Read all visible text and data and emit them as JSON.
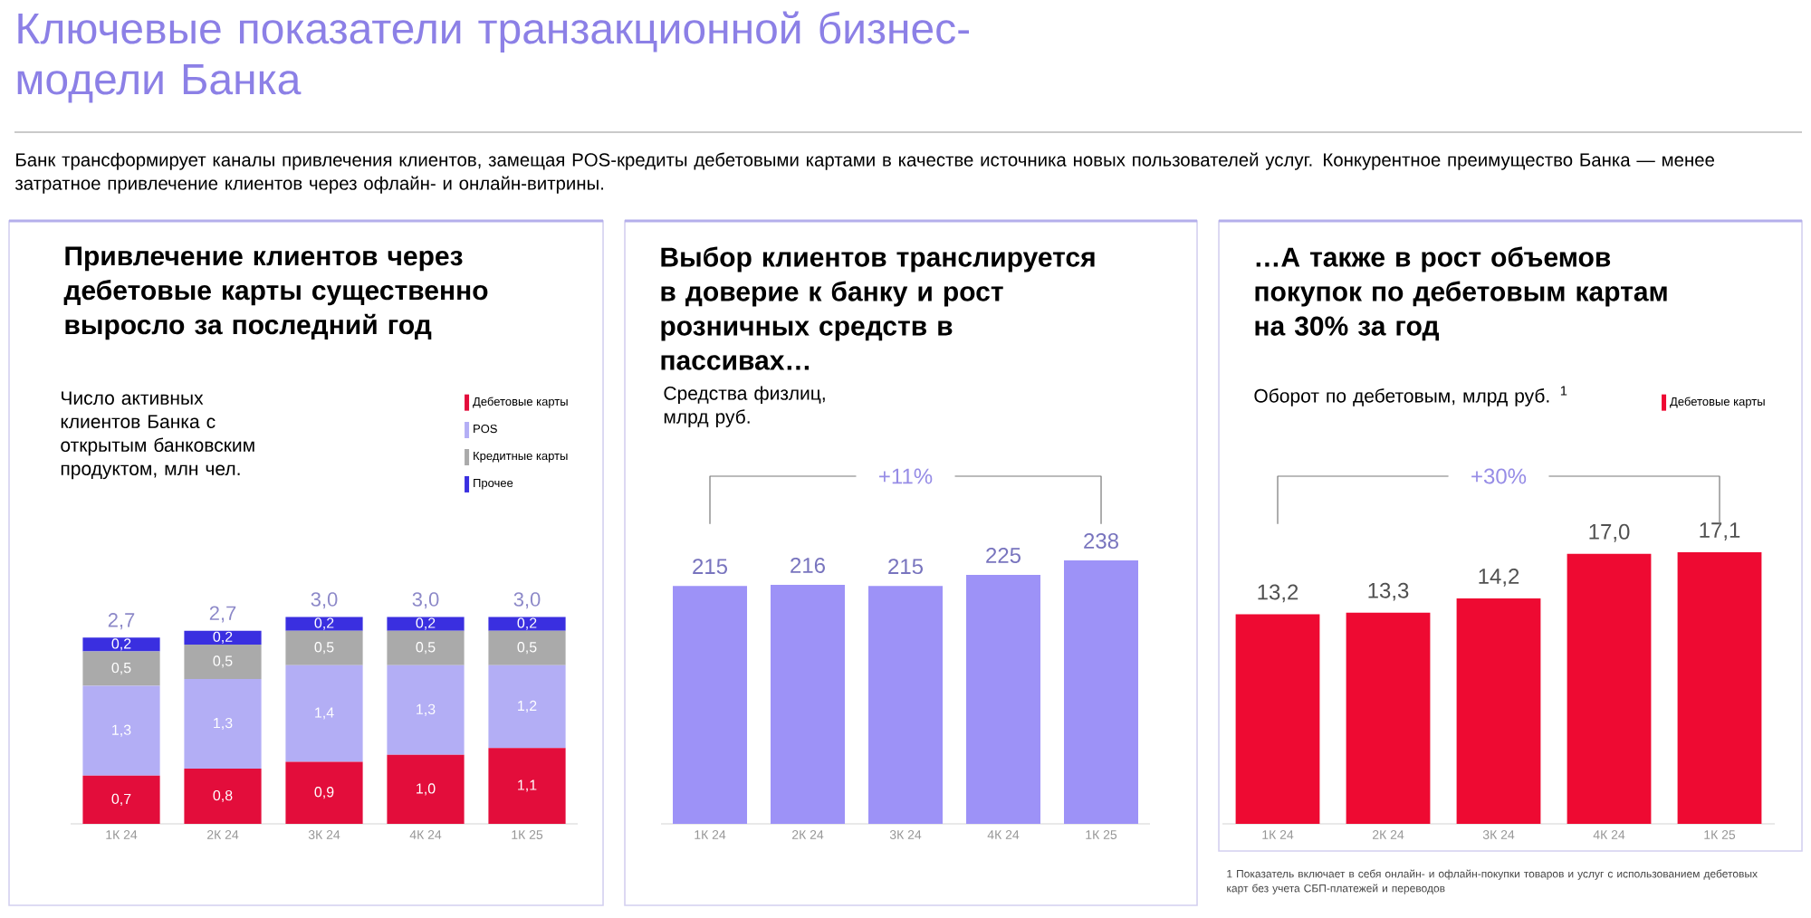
{
  "chart_data": [
    {
      "type": "bar",
      "title": "Привлечение клиентов через дебетовые карты существенно выросло за последний год",
      "subtitle": "Число активных клиентов Банка с открытым банковским продуктом, млн чел.",
      "categories": [
        "1К 24",
        "2К 24",
        "3К 24",
        "4К 24",
        "1К 25"
      ],
      "stacked": true,
      "legend": "top right",
      "tick_labels": "x",
      "series": [
        {
          "name": "Дебетовые карты",
          "color": "#e30d3b",
          "values": [
            0.7,
            0.8,
            0.9,
            1.0,
            1.1
          ],
          "value_labels": [
            "0,7",
            "0,8",
            "0,9",
            "1,0",
            "1,1"
          ]
        },
        {
          "name": "POS",
          "color": "#b3aef5",
          "values": [
            1.3,
            1.3,
            1.4,
            1.3,
            1.2
          ],
          "value_labels": [
            "1,3",
            "1,3",
            "1,4",
            "1,3",
            "1,2"
          ]
        },
        {
          "name": "Кредитные карты",
          "color": "#aaaaaa",
          "values": [
            0.5,
            0.5,
            0.5,
            0.5,
            0.5
          ],
          "value_labels": [
            "0,5",
            "0,5",
            "0,5",
            "0,5",
            "0,5"
          ]
        },
        {
          "name": "Прочее",
          "color": "#3a2fe0",
          "values": [
            0.2,
            0.2,
            0.2,
            0.2,
            0.2
          ],
          "value_labels": [
            "0,2",
            "0,2",
            "0,2",
            "0,2",
            "0,2"
          ]
        }
      ],
      "totals": [
        "2,7",
        "2,7",
        "3,0",
        "3,0",
        "3,0"
      ],
      "annotations": [
        "Ключевые показатели транзакционной бизнес-модели Банка",
        "Банк трансформирует каналы привлечения клиентов, замещая POS-кредиты дебетовыми картами в качестве источника новых пользователей услуг. Конкурентное преимущество Банка — менее затратное привлечение клиентов через офлайн- и онлайн-витрины."
      ]
    },
    {
      "type": "bar",
      "title": "Выбор клиентов транслируется в доверие к банку и рост розничных средств в пассивах…",
      "subtitle": "Средства физлиц, млрд руб.",
      "categories": [
        "1К 24",
        "2К 24",
        "3К 24",
        "4К 24",
        "1К 25"
      ],
      "tick_labels": "x",
      "series": [
        {
          "color": "#9d92f7",
          "values": [
            215,
            216,
            215,
            225,
            238
          ],
          "value_labels": [
            "215",
            "216",
            "215",
            "225",
            "238"
          ]
        }
      ],
      "annotations": [
        "+11%"
      ]
    },
    {
      "type": "bar",
      "title": "…А также в рост объемов покупок по дебетовым картам на 30% за год",
      "subtitle": "Оборот по дебетовым, млрд руб. $^{1}$",
      "categories": [
        "1К 24",
        "2К 24",
        "3К 24",
        "4К 24",
        "1К 25"
      ],
      "legend": "top right",
      "tick_labels": "x",
      "series": [
        {
          "name": "Дебетовые карты",
          "color": "#ee0a32",
          "values": [
            13.2,
            13.3,
            14.2,
            17.0,
            17.1
          ],
          "value_labels": [
            "13,2",
            "13,3",
            "14,2",
            "17,0",
            "17,1"
          ]
        }
      ],
      "annotations": [
        "+30%",
        "1   Показатель включает в себя онлайн- и офлайн-покупки товаров и услуг с использованием дебетовых карт без учета СБП-платежей и переводов"
      ]
    }
  ]
}
